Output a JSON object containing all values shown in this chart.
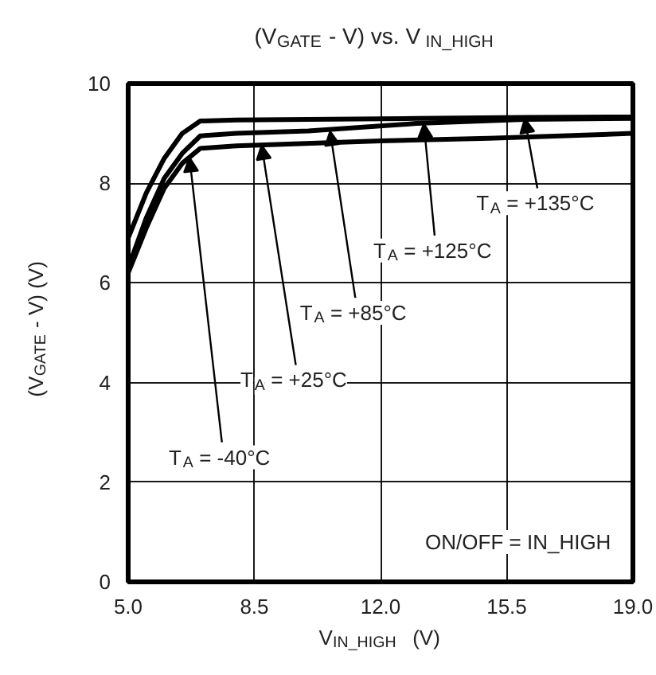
{
  "chart_data": {
    "type": "line",
    "title": "(V$_{GATE}$ - V) vs. V$_{IN_HIGH}$",
    "xlabel": "V$_{IN_HIGH}$ (V)",
    "ylabel": "(V$_{GATE}$ - V) (V)",
    "xlim": [
      5,
      19
    ],
    "ylim": [
      0,
      10
    ],
    "xticks": [
      {
        "value": 5,
        "label": "5.0"
      },
      {
        "value": 8.5,
        "label": "8.5"
      },
      {
        "value": 12,
        "label": "12.0"
      },
      {
        "value": 15.5,
        "label": "15.5"
      },
      {
        "value": 19,
        "label": "19.0"
      }
    ],
    "yticks": [
      0,
      2,
      4,
      6,
      8,
      10
    ],
    "grid": true,
    "marker": "none",
    "line_style": "solid",
    "series": [
      {
        "color": "#000000",
        "x": [
          5.0,
          5.5,
          6.0,
          6.5,
          7.0,
          8.0,
          10.0,
          13.0,
          16.0,
          19.0
        ],
        "values": [
          6.9,
          7.8,
          8.5,
          9.0,
          9.25,
          9.27,
          9.28,
          9.3,
          9.32,
          9.33
        ]
      },
      {
        "color": "#000000",
        "x": [
          5.0,
          5.5,
          6.0,
          6.5,
          7.0,
          8.0,
          10.0,
          13.0,
          16.0,
          19.0
        ],
        "values": [
          6.3,
          7.3,
          8.1,
          8.6,
          8.95,
          9.0,
          9.05,
          9.2,
          9.28,
          9.3
        ]
      },
      {
        "color": "#000000",
        "x": [
          5.0,
          5.5,
          6.0,
          6.5,
          7.0,
          8.0,
          12.0,
          15.0,
          19.0
        ],
        "values": [
          6.2,
          7.1,
          7.9,
          8.4,
          8.7,
          8.75,
          8.85,
          8.9,
          9.0
        ]
      }
    ],
    "annotations": [
      {
        "text": "T$_{A}$ = -40°C",
        "x": 6.7,
        "y": 8.52
      },
      {
        "text": "T$_{A}$ = +25°C",
        "x": 8.7,
        "y": 8.77
      },
      {
        "text": "T$_{A}$ = +85°C",
        "x": 10.6,
        "y": 9.05
      },
      {
        "text": "T$_{A}$ = +125°C",
        "x": 13.2,
        "y": 9.2
      },
      {
        "text": "T$_{A}$ = +135°C",
        "x": 16.0,
        "y": 9.3
      },
      "ON/OFF = IN_HIGH"
    ]
  }
}
